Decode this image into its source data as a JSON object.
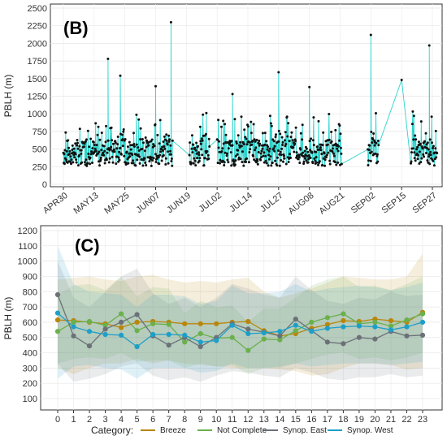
{
  "chart_data": [
    {
      "type": "line",
      "panel_label": "(B)",
      "ylabel": "PBLH (m)",
      "ylim": [
        0,
        2500
      ],
      "yticks": [
        0,
        250,
        500,
        750,
        1000,
        1250,
        1500,
        1750,
        2000,
        2250,
        2500
      ],
      "categories": [
        "APR30",
        "MAY13",
        "MAY25",
        "JUN07",
        "JUN19",
        "JUL02",
        "JUL14",
        "JUL27",
        "AUG08",
        "AUG21",
        "SEP02",
        "SEP15",
        "SEP27"
      ],
      "grid": true,
      "colors": {
        "line": "#2ad4cc",
        "marker": "#111111"
      },
      "peaks": [
        {
          "x": 1.45,
          "y": 1780
        },
        {
          "x": 1.85,
          "y": 1540
        },
        {
          "x": 3.0,
          "y": 1390
        },
        {
          "x": 3.5,
          "y": 2300
        },
        {
          "x": 4.65,
          "y": 1010
        },
        {
          "x": 5.5,
          "y": 1280
        },
        {
          "x": 7.0,
          "y": 1590
        },
        {
          "x": 8.0,
          "y": 1380
        },
        {
          "x": 10.0,
          "y": 2120
        },
        {
          "x": 11.0,
          "y": 1480
        },
        {
          "x": 11.9,
          "y": 1970
        }
      ]
    },
    {
      "type": "line",
      "panel_label": "(C)",
      "ylabel": "PBLH (m)",
      "ylim": [
        100,
        1200
      ],
      "yticks": [
        100,
        200,
        300,
        400,
        500,
        600,
        700,
        800,
        900,
        1000,
        1100,
        1200
      ],
      "x": [
        0,
        1,
        2,
        3,
        4,
        5,
        6,
        7,
        8,
        9,
        10,
        11,
        12,
        13,
        14,
        15,
        16,
        17,
        18,
        19,
        20,
        21,
        22,
        23
      ],
      "grid": true,
      "legend": {
        "title": "Category:",
        "placement": "bottom"
      },
      "series": [
        {
          "name": "Breeze",
          "color": "#b8860b",
          "values": [
            615,
            610,
            600,
            590,
            565,
            600,
            605,
            600,
            590,
            590,
            590,
            600,
            605,
            545,
            510,
            525,
            560,
            585,
            610,
            605,
            620,
            610,
            600,
            665
          ],
          "band_low": [
            300,
            260,
            300,
            330,
            330,
            360,
            330,
            350,
            330,
            320,
            310,
            300,
            300,
            300,
            290,
            280,
            250,
            260,
            300,
            330,
            330,
            320,
            290,
            300
          ],
          "band_high": [
            880,
            890,
            900,
            880,
            870,
            900,
            910,
            880,
            860,
            870,
            860,
            880,
            890,
            800,
            760,
            790,
            820,
            860,
            900,
            890,
            880,
            880,
            900,
            1050
          ]
        },
        {
          "name": "Not Complete",
          "color": "#6ab04c",
          "values": [
            540,
            600,
            605,
            580,
            655,
            545,
            590,
            585,
            470,
            525,
            495,
            500,
            415,
            490,
            485,
            545,
            600,
            630,
            655,
            590,
            600,
            575,
            615,
            655
          ],
          "band_low": [
            330,
            360,
            370,
            360,
            400,
            340,
            350,
            350,
            300,
            330,
            310,
            320,
            260,
            300,
            300,
            330,
            360,
            390,
            400,
            360,
            370,
            350,
            370,
            400
          ],
          "band_high": [
            780,
            840,
            850,
            810,
            900,
            770,
            830,
            820,
            660,
            740,
            700,
            710,
            600,
            690,
            690,
            760,
            840,
            880,
            900,
            830,
            840,
            810,
            850,
            900
          ]
        },
        {
          "name": "Synop. East",
          "color": "#6b7177",
          "values": [
            780,
            510,
            445,
            555,
            600,
            650,
            510,
            450,
            500,
            440,
            500,
            590,
            555,
            535,
            510,
            620,
            545,
            470,
            460,
            500,
            490,
            540,
            510,
            515
          ],
          "band_low": [
            330,
            210,
            230,
            260,
            310,
            330,
            250,
            220,
            240,
            210,
            250,
            280,
            270,
            250,
            240,
            300,
            270,
            230,
            220,
            240,
            240,
            260,
            240,
            250
          ],
          "band_high": [
            1000,
            760,
            700,
            800,
            900,
            950,
            790,
            720,
            760,
            700,
            760,
            850,
            820,
            780,
            760,
            900,
            810,
            740,
            720,
            760,
            750,
            800,
            770,
            780
          ]
        },
        {
          "name": "Synop. West",
          "color": "#1e9fc8",
          "values": [
            660,
            570,
            540,
            520,
            515,
            440,
            520,
            520,
            515,
            470,
            480,
            580,
            525,
            530,
            540,
            580,
            540,
            560,
            570,
            575,
            570,
            550,
            570,
            600
          ],
          "band_low": [
            230,
            310,
            320,
            300,
            290,
            230,
            300,
            300,
            300,
            270,
            280,
            330,
            300,
            300,
            310,
            330,
            310,
            320,
            330,
            330,
            330,
            320,
            330,
            340
          ],
          "band_high": [
            1100,
            850,
            800,
            790,
            780,
            700,
            780,
            780,
            770,
            720,
            740,
            840,
            790,
            790,
            800,
            850,
            800,
            820,
            830,
            840,
            830,
            810,
            830,
            860
          ]
        }
      ]
    }
  ]
}
